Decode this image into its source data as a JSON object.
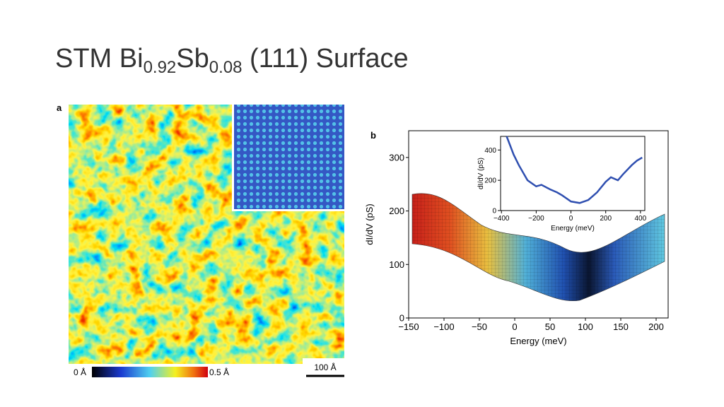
{
  "title": {
    "parts": [
      "STM Bi",
      "0.92",
      "Sb",
      "0.08",
      " (111) Surface"
    ]
  },
  "panel_a": {
    "label": "a",
    "colorbar": {
      "min_label": "0 Å",
      "max_label": "0.5 Å"
    },
    "scale_bar": "100 Å"
  },
  "panel_b": {
    "label": "b"
  },
  "chart_data": [
    {
      "type": "surface",
      "xlabel": "Energy (meV)",
      "ylabel": "dI/dV (pS)",
      "xlim": [
        -150,
        217
      ],
      "ylim": [
        0,
        350
      ],
      "xticks": [
        {
          "value": -150,
          "label": "−150"
        },
        {
          "value": -100,
          "label": "−100"
        },
        {
          "value": -50,
          "label": "−50"
        },
        0,
        50,
        100,
        150,
        200
      ],
      "yticks": [
        0,
        100,
        200,
        300
      ]
    },
    {
      "type": "line",
      "xlabel": "Energy (meV)",
      "ylabel": "dI/dV (pS)",
      "xlim": [
        -405,
        425
      ],
      "ylim": [
        0,
        490
      ],
      "xticks": [
        {
          "value": -400,
          "label": "−400"
        },
        {
          "value": -200,
          "label": "−200"
        },
        0,
        200,
        400
      ],
      "yticks": [
        0,
        200,
        400
      ],
      "series": [
        {
          "color": "#2f4fb0",
          "x": [
            -370,
            -330,
            -300,
            -250,
            -200,
            -170,
            -120,
            -80,
            -50,
            0,
            50,
            100,
            150,
            200,
            230,
            270,
            300,
            350,
            380,
            410
          ],
          "values": [
            490,
            370,
            300,
            200,
            160,
            170,
            140,
            120,
            100,
            60,
            50,
            70,
            120,
            190,
            220,
            200,
            240,
            300,
            330,
            350
          ]
        }
      ]
    }
  ]
}
